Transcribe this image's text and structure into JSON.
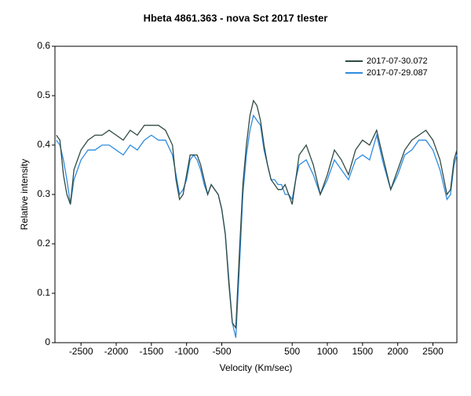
{
  "chart_data": {
    "type": "line",
    "title": "Hbeta 4861.363 - nova Sct 2017   tlester",
    "x_label": "Velocity (Km/sec)",
    "y_label": "Relative intensity",
    "x": [
      -2850,
      -2800,
      -2750,
      -2700,
      -2650,
      -2600,
      -2500,
      -2400,
      -2300,
      -2200,
      -2100,
      -2000,
      -1900,
      -1800,
      -1700,
      -1600,
      -1500,
      -1400,
      -1300,
      -1200,
      -1150,
      -1100,
      -1050,
      -1000,
      -950,
      -900,
      -850,
      -800,
      -750,
      -700,
      -650,
      -600,
      -550,
      -500,
      -450,
      -400,
      -350,
      -300,
      -250,
      -200,
      -150,
      -100,
      -50,
      0,
      50,
      100,
      150,
      200,
      250,
      300,
      350,
      400,
      450,
      500,
      550,
      600,
      700,
      800,
      900,
      1000,
      1100,
      1200,
      1300,
      1400,
      1500,
      1600,
      1700,
      1800,
      1900,
      2000,
      2100,
      2200,
      2300,
      2400,
      2500,
      2600,
      2700,
      2750,
      2800,
      2840
    ],
    "series": [
      {
        "name": "2017-07-30.072",
        "color": "#2f4a44",
        "values": [
          0.42,
          0.41,
          0.34,
          0.3,
          0.28,
          0.35,
          0.39,
          0.41,
          0.42,
          0.42,
          0.43,
          0.42,
          0.41,
          0.43,
          0.42,
          0.44,
          0.44,
          0.44,
          0.43,
          0.4,
          0.33,
          0.29,
          0.3,
          0.34,
          0.38,
          0.38,
          0.38,
          0.36,
          0.33,
          0.3,
          0.32,
          0.31,
          0.3,
          0.27,
          0.22,
          0.12,
          0.04,
          0.03,
          0.18,
          0.32,
          0.4,
          0.46,
          0.49,
          0.48,
          0.45,
          0.4,
          0.36,
          0.33,
          0.32,
          0.31,
          0.31,
          0.32,
          0.3,
          0.28,
          0.33,
          0.38,
          0.4,
          0.36,
          0.3,
          0.34,
          0.39,
          0.37,
          0.34,
          0.39,
          0.41,
          0.4,
          0.43,
          0.37,
          0.31,
          0.35,
          0.39,
          0.41,
          0.42,
          0.43,
          0.41,
          0.37,
          0.3,
          0.31,
          0.37,
          0.39
        ]
      },
      {
        "name": "2017-07-29.087",
        "color": "#2e8ce0",
        "values": [
          0.41,
          0.4,
          0.37,
          0.33,
          0.28,
          0.33,
          0.37,
          0.39,
          0.39,
          0.4,
          0.4,
          0.39,
          0.38,
          0.4,
          0.39,
          0.41,
          0.42,
          0.41,
          0.41,
          0.38,
          0.34,
          0.3,
          0.31,
          0.33,
          0.37,
          0.38,
          0.37,
          0.35,
          0.32,
          0.3,
          0.32,
          0.31,
          0.3,
          0.27,
          0.22,
          0.13,
          0.04,
          0.01,
          0.15,
          0.3,
          0.38,
          0.43,
          0.46,
          0.45,
          0.44,
          0.39,
          0.36,
          0.33,
          0.33,
          0.32,
          0.32,
          0.3,
          0.3,
          0.29,
          0.33,
          0.36,
          0.37,
          0.34,
          0.3,
          0.33,
          0.37,
          0.35,
          0.33,
          0.37,
          0.38,
          0.37,
          0.42,
          0.36,
          0.31,
          0.34,
          0.38,
          0.39,
          0.41,
          0.41,
          0.39,
          0.35,
          0.29,
          0.3,
          0.36,
          0.38
        ]
      }
    ],
    "xlim": [
      -2870,
      2840
    ],
    "ylim": [
      0,
      0.6
    ],
    "xticks": [
      -2500,
      -2000,
      -1500,
      -1000,
      -500,
      500,
      1000,
      1500,
      2000,
      2500
    ],
    "yticks": [
      0,
      0.1,
      0.2,
      0.3,
      0.4,
      0.5,
      0.6
    ],
    "legend": "top-right"
  }
}
